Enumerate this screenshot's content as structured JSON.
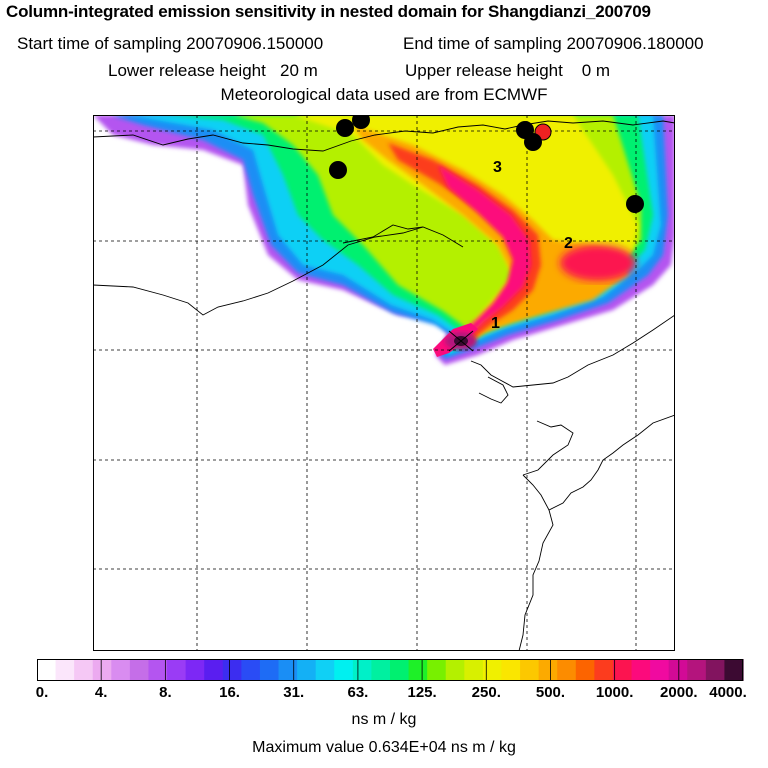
{
  "header": {
    "title": "Column-integrated emission sensitivity in nested domain for Shangdianzi_200709",
    "start_label": "Start time of sampling 20070906.150000",
    "end_label": "End time of sampling 20070906.180000",
    "lower_label": "Lower release height   20 m",
    "upper_label": "Upper release height    0 m",
    "met_label": "Meteorological data used are from ECMWF"
  },
  "map": {
    "labels": [
      "1",
      "2",
      "3"
    ],
    "point_color": "#000000",
    "site_color": "#ee2222"
  },
  "colorbar": {
    "ticks": [
      "0.",
      "4.",
      "8.",
      "16.",
      "31.",
      "63.",
      "125.",
      "250.",
      "500.",
      "1000.",
      "2000.",
      "4000."
    ],
    "units": "ns m / kg",
    "colors": [
      "#ffffff",
      "#fbe6fb",
      "#f5c8f5",
      "#ecaaf0",
      "#d98cf0",
      "#c56ee8",
      "#b455f0",
      "#9a3cf5",
      "#7d28f5",
      "#5a1ef0",
      "#3c2df0",
      "#2a4cf5",
      "#1e6cf5",
      "#1a8ef5",
      "#14b0f5",
      "#10d0f5",
      "#00f0f0",
      "#00f0c8",
      "#00f0a0",
      "#00f070",
      "#1ef028",
      "#78f000",
      "#b4f000",
      "#d8f000",
      "#f0f000",
      "#fae600",
      "#fcc800",
      "#fcaa00",
      "#fc8c00",
      "#fc6400",
      "#fc3c1e",
      "#fc1450",
      "#fc0a7c",
      "#f00aa0",
      "#d20a96",
      "#b4147d",
      "#82145f",
      "#3c0a32"
    ],
    "max_label": "Maximum value  0.634E+04 ns m / kg"
  }
}
